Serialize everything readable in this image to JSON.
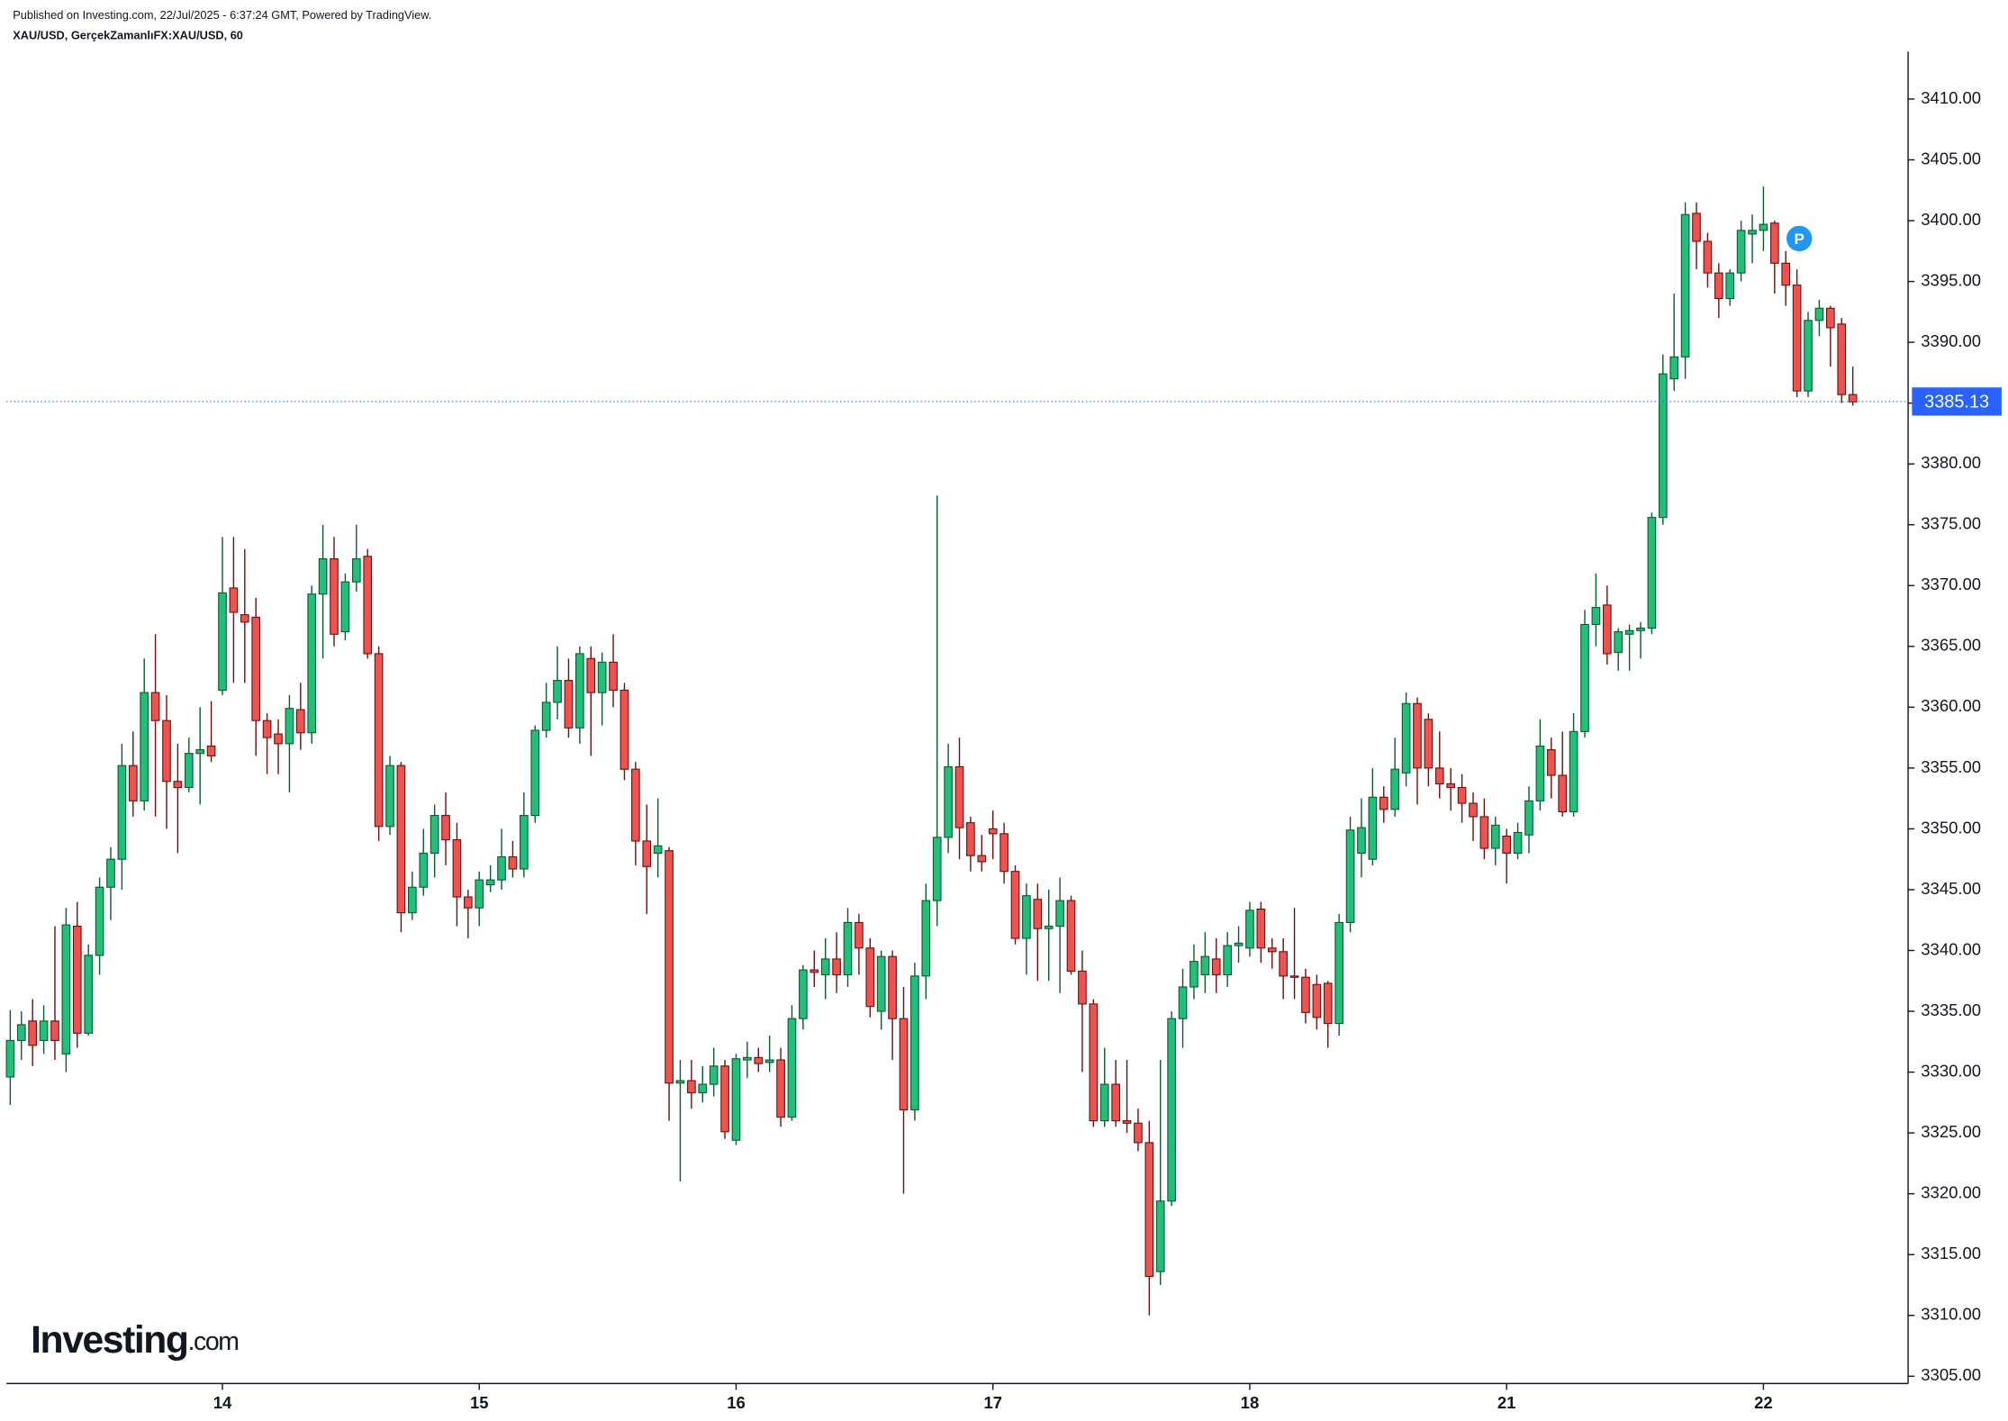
{
  "chart_data": {
    "type": "candlestick",
    "header": "Published on Investing.com, 22/Jul/2025 - 6:37:24 GMT, Powered by TradingView.",
    "title": "XAU/USD, GerçekZamanlıFX:XAU/USD, 60",
    "logo_text": "Investing",
    "logo_suffix": ".com",
    "marker": "P",
    "last_price": 3385.13,
    "up_color": "#22bf7a",
    "down_color": "#ef5350",
    "up_border": "#0d5c32",
    "down_border": "#6b1414",
    "last_price_color": "#2962ff",
    "categories": [
      null,
      null,
      null,
      null,
      null,
      null,
      null,
      null,
      null,
      null,
      null,
      null,
      null,
      null,
      null,
      null,
      null,
      null,
      null,
      "14",
      null,
      null,
      null,
      null,
      null,
      null,
      null,
      null,
      null,
      null,
      null,
      null,
      null,
      null,
      null,
      null,
      null,
      null,
      null,
      null,
      null,
      null,
      "15",
      null,
      null,
      null,
      null,
      null,
      null,
      null,
      null,
      null,
      null,
      null,
      null,
      null,
      null,
      null,
      null,
      null,
      null,
      null,
      null,
      null,
      null,
      "16",
      null,
      null,
      null,
      null,
      null,
      null,
      null,
      null,
      null,
      null,
      null,
      null,
      null,
      null,
      null,
      null,
      null,
      null,
      null,
      null,
      null,
      null,
      "17",
      null,
      null,
      null,
      null,
      null,
      null,
      null,
      null,
      null,
      null,
      null,
      null,
      null,
      null,
      null,
      null,
      null,
      null,
      null,
      null,
      null,
      null,
      "18",
      null,
      null,
      null,
      null,
      null,
      null,
      null,
      null,
      null,
      null,
      null,
      null,
      null,
      null,
      null,
      null,
      null,
      null,
      null,
      null,
      null,
      null,
      "21",
      null,
      null,
      null,
      null,
      null,
      null,
      null,
      null,
      null,
      null,
      null,
      null,
      null,
      null,
      null,
      null,
      null,
      null,
      null,
      null,
      null,
      null,
      "22",
      null,
      null,
      null,
      null,
      null,
      null,
      null,
      null
    ],
    "open": [
      3329.6,
      3332.6,
      3334.2,
      3332.6,
      3334.2,
      3331.5,
      3342.0,
      3333.2,
      3339.6,
      3345.2,
      3347.5,
      3355.2,
      3352.3,
      3361.2,
      3358.9,
      3353.9,
      3353.4,
      3356.2,
      3356.8,
      3361.4,
      3369.8,
      3367.6,
      3367.4,
      3358.9,
      3357.8,
      3357.0,
      3359.8,
      3357.9,
      3369.3,
      3372.2,
      3366.2,
      3370.3,
      3372.4,
      3364.4,
      3350.2,
      3355.2,
      3343.1,
      3345.2,
      3348.0,
      3351.1,
      3349.1,
      3344.4,
      3343.5,
      3345.4,
      3345.8,
      3347.7,
      3346.7,
      3351.1,
      3358.1,
      3360.4,
      3362.2,
      3358.3,
      3364.0,
      3361.2,
      3363.7,
      3361.4,
      3354.9,
      3349.0,
      3348.0,
      3348.2,
      3329.1,
      3329.3,
      3328.3,
      3329.0,
      3330.5,
      3324.4,
      3331.0,
      3331.2,
      3330.8,
      3331.0,
      3326.3,
      3334.4,
      3338.4,
      3338.0,
      3339.3,
      3338.0,
      3342.3,
      3340.2,
      3335.0,
      3339.5,
      3334.4,
      3326.9,
      3337.9,
      3344.1,
      3349.3,
      3355.1,
      3350.5,
      3347.8,
      3350.0,
      3349.6,
      3346.5,
      3341.0,
      3344.2,
      3341.8,
      3342.0,
      3344.1,
      3338.3,
      3335.6,
      3326.0,
      3329.0,
      3326.0,
      3325.8,
      3324.2,
      3313.6,
      3319.4,
      3334.4,
      3337.0,
      3338.0,
      3339.3,
      3338.0,
      3340.4,
      3340.2,
      3343.4,
      3340.2,
      3339.9,
      3337.9,
      3337.8,
      3337.2,
      3337.3,
      3334.0,
      3342.3,
      3348.0,
      3347.5,
      3352.6,
      3351.6,
      3354.6,
      3360.3,
      3359.0,
      3355.0,
      3353.7,
      3353.4,
      3352.1,
      3351.0,
      3348.4,
      3349.4,
      3348.0,
      3349.5,
      3352.3,
      3356.5,
      3354.4,
      3351.4,
      3358.0,
      3366.8,
      3368.4,
      3364.5,
      3366.0,
      3366.3,
      3366.5,
      3375.6,
      3387.0,
      3388.8,
      3400.6,
      3398.3,
      3395.7,
      3393.6,
      3395.7,
      3398.9,
      3399.2,
      3399.8,
      3396.5,
      3394.7,
      3386.0,
      3391.8,
      3392.8,
      3391.5,
      3385.7
    ],
    "high": [
      3335.1,
      3335.0,
      3336.0,
      3335.5,
      3342.0,
      3343.5,
      3344.0,
      3340.5,
      3346.0,
      3348.5,
      3357.0,
      3358.0,
      3364.0,
      3366.0,
      3361.0,
      3357.0,
      3357.5,
      3360.0,
      3360.5,
      3374.0,
      3374.0,
      3373.0,
      3369.0,
      3359.5,
      3359.0,
      3361.0,
      3362.0,
      3370.0,
      3375.0,
      3374.0,
      3371.0,
      3375.0,
      3373.0,
      3365.0,
      3356.0,
      3355.5,
      3346.5,
      3350.0,
      3352.0,
      3353.0,
      3350.5,
      3345.0,
      3346.5,
      3347.0,
      3350.0,
      3349.0,
      3353.0,
      3358.5,
      3362.0,
      3365.0,
      3364.0,
      3365.0,
      3365.0,
      3364.5,
      3366.0,
      3362.0,
      3355.5,
      3352.0,
      3352.5,
      3348.5,
      3331.0,
      3331.0,
      3330.5,
      3332.0,
      3331.0,
      3331.5,
      3332.5,
      3332.0,
      3333.0,
      3332.0,
      3335.5,
      3338.8,
      3340.0,
      3341.0,
      3341.5,
      3343.5,
      3343.0,
      3341.0,
      3340.0,
      3340.0,
      3337.0,
      3339.0,
      3345.5,
      3377.4,
      3357.0,
      3357.5,
      3351.0,
      3349.5,
      3351.5,
      3350.5,
      3347.0,
      3345.5,
      3345.5,
      3345.0,
      3346.0,
      3344.5,
      3340.0,
      3336.0,
      3332.0,
      3331.0,
      3331.0,
      3327.0,
      3326.0,
      3331.0,
      3335.0,
      3338.5,
      3340.5,
      3341.5,
      3341.0,
      3341.5,
      3342.0,
      3344.0,
      3344.0,
      3341.0,
      3341.0,
      3343.5,
      3338.5,
      3338.0,
      3337.5,
      3343.0,
      3351.0,
      3352.5,
      3355.0,
      3353.5,
      3357.5,
      3361.2,
      3360.8,
      3359.5,
      3358.0,
      3355.0,
      3354.5,
      3353.0,
      3352.5,
      3351.0,
      3350.0,
      3350.5,
      3353.5,
      3359.0,
      3357.5,
      3358.0,
      3359.5,
      3368.0,
      3371.0,
      3370.0,
      3366.5,
      3366.8,
      3367.0,
      3376.0,
      3389.0,
      3394.0,
      3401.5,
      3401.5,
      3399.0,
      3396.5,
      3396.0,
      3400.0,
      3400.5,
      3402.8,
      3400.0,
      3397.5,
      3396.0,
      3392.5,
      3393.5,
      3393.0,
      3392.0,
      3388.0
    ],
    "low": [
      3327.3,
      3331.0,
      3330.5,
      3331.5,
      3331.0,
      3330.0,
      3332.0,
      3333.0,
      3338.0,
      3342.5,
      3345.0,
      3351.0,
      3351.5,
      3351.0,
      3350.0,
      3348.0,
      3353.0,
      3352.0,
      3355.5,
      3361.0,
      3362.0,
      3362.0,
      3356.0,
      3354.5,
      3354.5,
      3353.0,
      3356.5,
      3357.0,
      3364.0,
      3365.0,
      3365.5,
      3369.5,
      3364.0,
      3349.0,
      3349.5,
      3341.5,
      3342.5,
      3344.5,
      3346.0,
      3347.0,
      3342.0,
      3341.0,
      3342.0,
      3344.8,
      3345.0,
      3346.0,
      3346.0,
      3350.5,
      3357.5,
      3359.0,
      3357.5,
      3357.0,
      3356.0,
      3358.5,
      3360.0,
      3354.0,
      3347.0,
      3343.0,
      3346.0,
      3326.0,
      3321.0,
      3327.0,
      3327.5,
      3328.0,
      3324.5,
      3324.0,
      3329.5,
      3330.0,
      3330.0,
      3325.5,
      3326.0,
      3333.5,
      3337.0,
      3336.0,
      3336.5,
      3337.0,
      3338.0,
      3334.5,
      3333.5,
      3331.0,
      3320.0,
      3326.0,
      3336.0,
      3342.0,
      3348.0,
      3347.5,
      3346.5,
      3346.5,
      3347.5,
      3345.5,
      3340.5,
      3338.0,
      3337.5,
      3337.5,
      3336.5,
      3338.0,
      3330.0,
      3325.5,
      3325.5,
      3325.5,
      3325.0,
      3323.5,
      3310.0,
      3312.5,
      3319.0,
      3332.0,
      3336.0,
      3336.5,
      3336.5,
      3337.0,
      3339.0,
      3339.5,
      3339.0,
      3338.5,
      3336.0,
      3336.0,
      3334.0,
      3333.5,
      3332.0,
      3333.0,
      3341.5,
      3346.0,
      3347.0,
      3350.5,
      3351.0,
      3353.5,
      3352.0,
      3353.5,
      3352.5,
      3351.5,
      3350.5,
      3349.0,
      3347.5,
      3347.0,
      3345.5,
      3347.5,
      3348.0,
      3351.5,
      3352.5,
      3351.0,
      3351.0,
      3357.5,
      3365.0,
      3363.5,
      3363.0,
      3363.0,
      3364.0,
      3366.0,
      3375.0,
      3386.0,
      3387.0,
      3396.0,
      3394.5,
      3392.0,
      3393.0,
      3395.0,
      3396.5,
      3397.5,
      3394.0,
      3393.0,
      3385.5,
      3385.5,
      3390.5,
      3388.0,
      3385.0,
      3384.8
    ],
    "close": [
      3332.6,
      3333.9,
      3332.2,
      3334.2,
      3332.6,
      3342.1,
      3333.2,
      3339.6,
      3345.2,
      3347.5,
      3355.2,
      3352.3,
      3361.2,
      3358.9,
      3353.9,
      3353.4,
      3356.2,
      3356.5,
      3356.0,
      3369.4,
      3367.8,
      3367.0,
      3358.9,
      3357.5,
      3357.0,
      3359.9,
      3357.9,
      3369.3,
      3372.2,
      3366.0,
      3370.3,
      3372.2,
      3364.4,
      3350.2,
      3355.2,
      3343.1,
      3345.2,
      3348.0,
      3351.1,
      3349.1,
      3344.4,
      3343.5,
      3345.8,
      3345.8,
      3347.7,
      3346.7,
      3351.1,
      3358.1,
      3360.4,
      3362.2,
      3358.3,
      3364.4,
      3361.2,
      3363.7,
      3361.4,
      3354.9,
      3349.0,
      3346.9,
      3348.6,
      3329.1,
      3329.3,
      3328.3,
      3329.0,
      3330.5,
      3325.1,
      3331.1,
      3331.2,
      3330.7,
      3331.0,
      3326.3,
      3334.4,
      3338.4,
      3338.2,
      3339.3,
      3338.0,
      3342.3,
      3340.2,
      3335.4,
      3339.5,
      3334.4,
      3326.9,
      3337.9,
      3344.1,
      3349.3,
      3355.1,
      3350.1,
      3347.8,
      3347.3,
      3349.6,
      3346.5,
      3341.0,
      3344.5,
      3341.8,
      3342.0,
      3344.1,
      3338.3,
      3335.6,
      3326.0,
      3329.0,
      3326.0,
      3325.8,
      3324.2,
      3313.2,
      3319.4,
      3334.4,
      3337.0,
      3339.1,
      3339.5,
      3338.0,
      3340.4,
      3340.6,
      3343.3,
      3340.2,
      3339.9,
      3337.9,
      3337.8,
      3334.9,
      3334.5,
      3334.0,
      3342.3,
      3349.9,
      3350.1,
      3352.6,
      3351.6,
      3354.9,
      3360.3,
      3355.0,
      3355.0,
      3353.7,
      3353.4,
      3352.1,
      3351.0,
      3348.4,
      3350.3,
      3348.0,
      3349.7,
      3352.3,
      3356.8,
      3354.4,
      3351.4,
      3358.0,
      3366.8,
      3368.2,
      3364.4,
      3366.2,
      3366.3,
      3366.5,
      3375.6,
      3387.4,
      3388.8,
      3400.5,
      3398.3,
      3395.7,
      3393.6,
      3395.7,
      3399.2,
      3399.2,
      3399.7,
      3396.5,
      3394.7,
      3386.0,
      3391.8,
      3392.8,
      3391.2,
      3385.7,
      3385.1
    ],
    "ylim": [
      3304.4,
      3413.9
    ],
    "yticks": [
      {
        "value": 3305,
        "label": "3305.00"
      },
      {
        "value": 3310,
        "label": "3310.00"
      },
      {
        "value": 3315,
        "label": "3315.00"
      },
      {
        "value": 3320,
        "label": "3320.00"
      },
      {
        "value": 3325,
        "label": "3325.00"
      },
      {
        "value": 3330,
        "label": "3330.00"
      },
      {
        "value": 3335,
        "label": "3335.00"
      },
      {
        "value": 3340,
        "label": "3340.00"
      },
      {
        "value": 3345,
        "label": "3345.00"
      },
      {
        "value": 3350,
        "label": "3350.00"
      },
      {
        "value": 3355,
        "label": "3355.00"
      },
      {
        "value": 3360,
        "label": "3360.00"
      },
      {
        "value": 3365,
        "label": "3365.00"
      },
      {
        "value": 3370,
        "label": "3370.00"
      },
      {
        "value": 3375,
        "label": "3375.00"
      },
      {
        "value": 3380,
        "label": "3380.00"
      },
      {
        "value": 3385,
        "label": "3385.00"
      },
      {
        "value": 3390,
        "label": "3390.00"
      },
      {
        "value": 3395,
        "label": "3395.00"
      },
      {
        "value": 3400,
        "label": "3400.00"
      },
      {
        "value": 3405,
        "label": "3405.00"
      },
      {
        "value": 3410,
        "label": "3410.00"
      }
    ]
  }
}
